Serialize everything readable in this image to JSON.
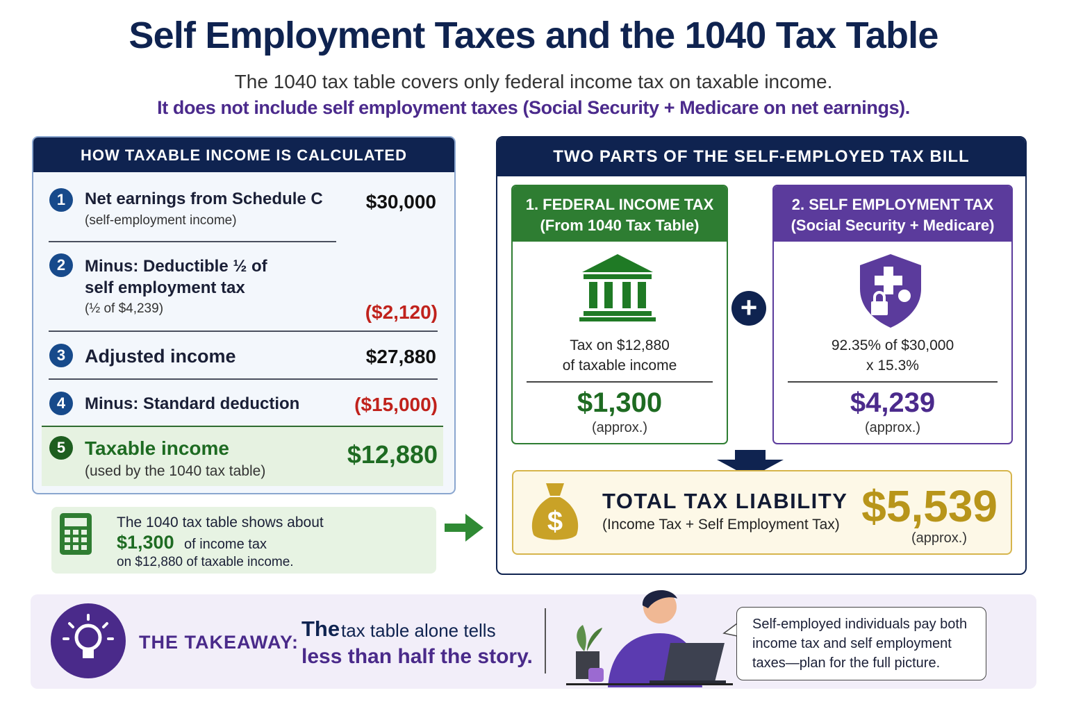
{
  "header": {
    "title": "Self Employment Taxes and the 1040 Tax Table",
    "subtitle": "The 1040 tax table covers only federal income tax on taxable income.",
    "note": "It does not include self employment taxes (Social Security + Medicare on net earnings)."
  },
  "left_panel": {
    "title": "HOW TAXABLE INCOME IS CALCULATED",
    "steps": [
      {
        "number": "1",
        "label": "Net earnings from Schedule C",
        "detail": "(self-employment income)",
        "amount": "$30,000"
      },
      {
        "number": "2",
        "label": "Minus: Deductible ½ of self employment tax",
        "detail": "(½ of $4,239)",
        "amount": "($2,120)"
      },
      {
        "number": "3",
        "label": "Adjusted income",
        "amount": "$27,880"
      },
      {
        "number": "4",
        "label": "Minus: Standard deduction",
        "amount": "($15,000)"
      },
      {
        "number": "5",
        "label": "Taxable income",
        "detail": "(used by the 1040 tax table)",
        "amount": "$12,880"
      }
    ]
  },
  "callout": {
    "line1": "The 1040 tax table shows about",
    "amount": "$1,300",
    "line2": "of income tax",
    "line3": "on $12,880 of taxable income."
  },
  "right_panel": {
    "title": "TWO PARTS OF THE SELF-EMPLOYED TAX BILL",
    "cards": [
      {
        "title": "1. FEDERAL INCOME TAX",
        "subtitle": "(From 1040 Tax Table)",
        "desc": [
          "Tax on $12,880",
          "of taxable income"
        ],
        "amount": "$1,300",
        "note": "(approx.)"
      },
      {
        "title": "2. SELF EMPLOYMENT TAX",
        "subtitle": "(Social Security + Medicare)",
        "desc": [
          "92.35% of $30,000",
          "x 15.3%"
        ],
        "amount": "$4,239",
        "note": "(approx.)"
      }
    ],
    "total": {
      "label": "TOTAL TAX LIABILITY",
      "detail": "(Income Tax + Self Employment Tax)",
      "amount": "$5,539",
      "note": "(approx.)"
    }
  },
  "takeaway": {
    "label": "THE TAKEAWAY:",
    "lead": "The",
    "line1": "tax table alone tells",
    "line2": "less than half the story.",
    "bubble": "Self-employed individuals pay both income tax and self employment taxes—plan for the full picture."
  }
}
